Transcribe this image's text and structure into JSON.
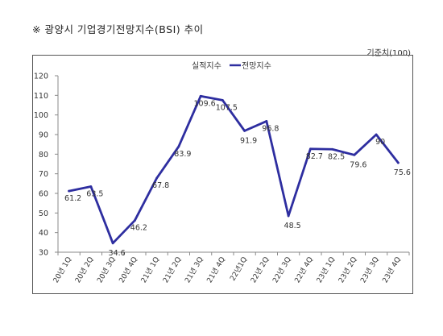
{
  "header": {
    "title": "※ 광양시 기업경기전망지수(BSI) 추이",
    "unit": "기준치(100)"
  },
  "chart_data": {
    "type": "line",
    "title": "※ 광양시 기업경기전망지수(BSI) 추이",
    "xlabel": "",
    "ylabel": "",
    "ylim": [
      30,
      120
    ],
    "yticks": [
      30,
      40,
      50,
      60,
      70,
      80,
      90,
      100,
      110,
      120
    ],
    "grid": false,
    "legend_position": "top",
    "series_color": "#2E2EA0",
    "categories": [
      "20년 1Q",
      "20년 2Q",
      "20년 3Q",
      "20년 4Q",
      "21년 1Q",
      "21년 2Q",
      "21년 3Q",
      "21년 4Q",
      "22년 1Q",
      "22년 2Q",
      "22년 3Q",
      "22년 4Q",
      "23년 1Q",
      "23년 2Q",
      "23년 3Q",
      "23년 4Q"
    ],
    "tick_labels": [
      "20년 1Q",
      "20년 2Q",
      "20년 3Q",
      "20년 4Q",
      "21년 1Q",
      "21년 2Q",
      "21년 3Q",
      "21년 4Q",
      "22년1Q",
      "22년 2Q",
      "22년 3Q",
      "22년 4Q",
      "23년 1Q",
      "23년 2Q",
      "23년 3Q",
      "23년 4Q"
    ],
    "legend": [
      "실적지수",
      "전망지수"
    ],
    "series": [
      {
        "name": "전망지수",
        "values": [
          61.2,
          63.5,
          34.6,
          46.2,
          67.8,
          83.9,
          109.6,
          107.5,
          91.9,
          96.8,
          48.5,
          82.7,
          82.5,
          79.6,
          90,
          75.6
        ]
      }
    ]
  }
}
